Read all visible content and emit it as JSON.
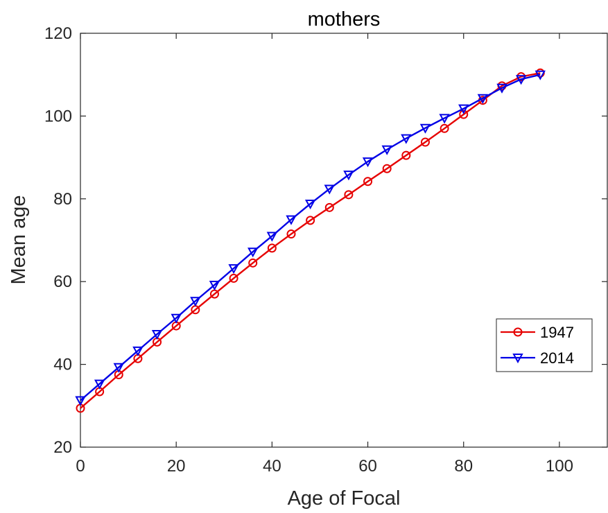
{
  "chart_data": {
    "type": "line",
    "title": "mothers",
    "xlabel": "Age of Focal",
    "ylabel": "Mean age",
    "xlim": [
      0,
      110
    ],
    "ylim": [
      20,
      120
    ],
    "xticks": [
      0,
      20,
      40,
      60,
      80,
      100
    ],
    "yticks": [
      20,
      40,
      60,
      80,
      100,
      120
    ],
    "grid": false,
    "legend_position": "lower-right",
    "x": [
      0,
      4,
      8,
      12,
      16,
      20,
      24,
      28,
      32,
      36,
      40,
      44,
      48,
      52,
      56,
      60,
      64,
      68,
      72,
      76,
      80,
      84,
      88,
      92,
      96
    ],
    "series": [
      {
        "name": "1947",
        "color": "#e60000",
        "marker": "circle",
        "values": [
          29.4,
          33.4,
          37.5,
          41.4,
          45.4,
          49.3,
          53.2,
          57.0,
          60.8,
          64.5,
          68.1,
          71.5,
          74.8,
          77.9,
          81.0,
          84.2,
          87.3,
          90.5,
          93.7,
          97.0,
          100.4,
          103.8,
          107.3,
          109.5,
          110.4
        ]
      },
      {
        "name": "2014",
        "color": "#0000e6",
        "marker": "triangle-down",
        "values": [
          31.3,
          35.3,
          39.3,
          43.3,
          47.3,
          51.2,
          55.3,
          59.2,
          63.2,
          67.2,
          71.0,
          75.0,
          78.8,
          82.4,
          85.8,
          89.0,
          91.9,
          94.6,
          97.1,
          99.5,
          101.8,
          104.3,
          106.8,
          108.9,
          110.0
        ]
      }
    ]
  }
}
